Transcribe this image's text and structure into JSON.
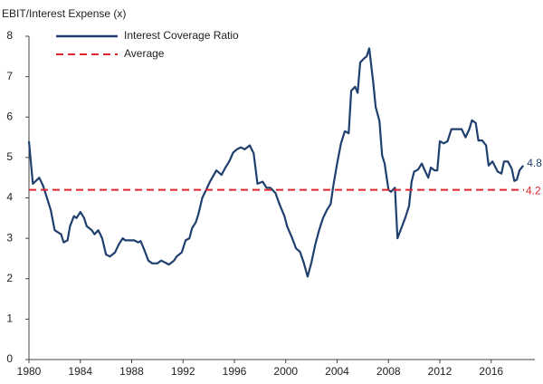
{
  "chart_data": {
    "type": "line",
    "y_axis_label": "EBIT/Interest Expense (x)",
    "x": [
      1980.0,
      1980.3,
      1980.8,
      1981.1,
      1981.4,
      1981.7,
      1982.0,
      1982.5,
      1982.7,
      1983.0,
      1983.2,
      1983.5,
      1983.7,
      1984.0,
      1984.3,
      1984.5,
      1984.9,
      1985.1,
      1985.4,
      1985.7,
      1986.0,
      1986.3,
      1986.7,
      1987.0,
      1987.3,
      1987.5,
      1987.8,
      1988.2,
      1988.5,
      1988.7,
      1989.0,
      1989.3,
      1989.6,
      1990.0,
      1990.3,
      1990.6,
      1990.9,
      1991.3,
      1991.5,
      1991.9,
      1992.2,
      1992.5,
      1992.7,
      1993.0,
      1993.2,
      1993.5,
      1993.8,
      1994.1,
      1994.4,
      1994.6,
      1995.0,
      1995.3,
      1995.6,
      1995.9,
      1996.2,
      1996.5,
      1996.8,
      1997.2,
      1997.5,
      1997.8,
      1998.2,
      1998.5,
      1998.8,
      1999.2,
      1999.5,
      1999.9,
      2000.1,
      2000.5,
      2000.8,
      2001.1,
      2001.4,
      2001.7,
      2002.0,
      2002.3,
      2002.6,
      2002.9,
      2003.2,
      2003.5,
      2003.7,
      2004.0,
      2004.3,
      2004.6,
      2004.9,
      2005.1,
      2005.4,
      2005.6,
      2005.8,
      2006.1,
      2006.3,
      2006.5,
      2006.8,
      2007.0,
      2007.3,
      2007.5,
      2007.7,
      2008.0,
      2008.2,
      2008.5,
      2008.7,
      2009.0,
      2009.3,
      2009.6,
      2009.8,
      2010.0,
      2010.3,
      2010.6,
      2010.8,
      2011.1,
      2011.3,
      2011.6,
      2011.8,
      2012.0,
      2012.3,
      2012.6,
      2012.9,
      2013.2,
      2013.5,
      2013.7,
      2014.0,
      2014.3,
      2014.5,
      2014.8,
      2015.0,
      2015.3,
      2015.6,
      2015.8,
      2016.1,
      2016.3,
      2016.5,
      2016.8,
      2017.0,
      2017.3,
      2017.6,
      2017.8,
      2018.0,
      2018.2,
      2018.5
    ],
    "series": [
      {
        "name": "Interest Coverage Ratio",
        "color": "#1f3f6e",
        "values": [
          5.4,
          4.35,
          4.5,
          4.3,
          4.0,
          3.7,
          3.2,
          3.1,
          2.9,
          2.95,
          3.3,
          3.55,
          3.5,
          3.65,
          3.5,
          3.3,
          3.2,
          3.1,
          3.2,
          3.0,
          2.6,
          2.55,
          2.65,
          2.85,
          3.0,
          2.95,
          2.95,
          2.95,
          2.9,
          2.93,
          2.7,
          2.45,
          2.38,
          2.38,
          2.45,
          2.4,
          2.35,
          2.45,
          2.55,
          2.65,
          2.95,
          3.0,
          3.25,
          3.4,
          3.6,
          4.0,
          4.2,
          4.4,
          4.57,
          4.68,
          4.57,
          4.75,
          4.9,
          5.12,
          5.2,
          5.25,
          5.2,
          5.3,
          5.1,
          4.35,
          4.4,
          4.25,
          4.25,
          4.12,
          3.85,
          3.55,
          3.3,
          3.0,
          2.75,
          2.67,
          2.4,
          2.05,
          2.4,
          2.85,
          3.2,
          3.5,
          3.7,
          3.85,
          4.3,
          4.85,
          5.35,
          5.65,
          5.6,
          6.65,
          6.75,
          6.6,
          7.35,
          7.45,
          7.5,
          7.7,
          6.9,
          6.25,
          5.9,
          5.05,
          4.85,
          4.2,
          4.15,
          4.25,
          3.0,
          3.25,
          3.5,
          3.8,
          4.4,
          4.65,
          4.7,
          4.85,
          4.7,
          4.5,
          4.75,
          4.68,
          4.68,
          5.4,
          5.35,
          5.4,
          5.7,
          5.7,
          5.7,
          5.7,
          5.5,
          5.7,
          5.92,
          5.85,
          5.42,
          5.42,
          5.3,
          4.8,
          4.9,
          4.78,
          4.65,
          4.6,
          4.9,
          4.9,
          4.72,
          4.42,
          4.45,
          4.68,
          4.8
        ]
      }
    ],
    "average": {
      "name": "Average",
      "color": "#e0262c",
      "value": 4.2
    },
    "xlim": [
      1980,
      2019.4
    ],
    "xticks": [
      1980,
      1984,
      1988,
      1992,
      1996,
      2000,
      2004,
      2008,
      2012,
      2016
    ],
    "ylim": [
      0,
      8
    ],
    "yticks": [
      0,
      1,
      2,
      3,
      4,
      5,
      6,
      7,
      8
    ]
  }
}
